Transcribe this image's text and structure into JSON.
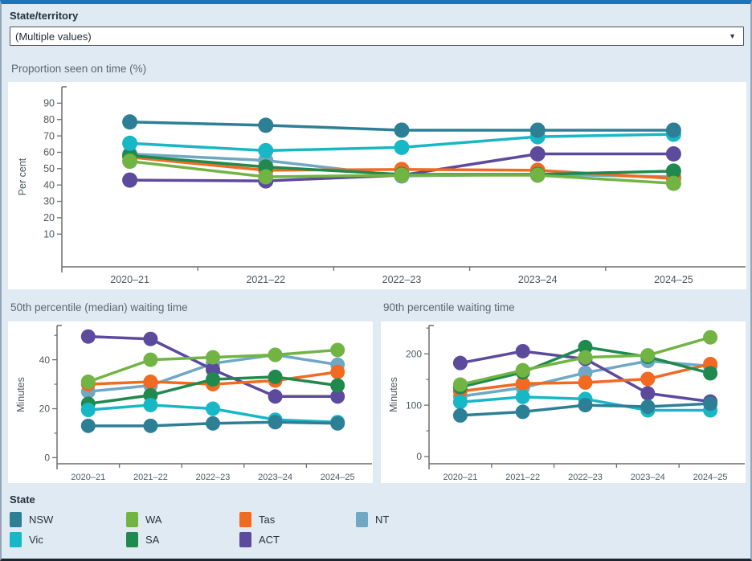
{
  "ui": {
    "filter_label": "State/territory",
    "filter_value": "(Multiple values)"
  },
  "colors": {
    "NSW": "#2d7f96",
    "Vic": "#18b7c6",
    "WA": "#72b444",
    "SA": "#20894e",
    "Tas": "#f16a22",
    "ACT": "#5c4a9d",
    "NT": "#70a8c4",
    "top_bar": "#1b75bc",
    "background": "#e0eaf2",
    "panel": "#ffffff"
  },
  "legend": {
    "title": "State",
    "items": [
      "NSW",
      "WA",
      "Tas",
      "NT",
      "Vic",
      "SA",
      "ACT"
    ]
  },
  "draw_order": [
    "NT",
    "ACT",
    "Tas",
    "SA",
    "WA",
    "Vic",
    "NSW"
  ],
  "chart_data": [
    {
      "type": "line",
      "title": "Proportion seen on time (%)",
      "ylabel": "Per cent",
      "categories": [
        "2020–21",
        "2021–22",
        "2022–23",
        "2023–24",
        "2024–25"
      ],
      "yticks": [
        10,
        20,
        30,
        40,
        50,
        60,
        70,
        80,
        90
      ],
      "yticks_minor": [],
      "ylim": [
        -10,
        100
      ],
      "legend_position": "bottom",
      "grid": false,
      "series": [
        {
          "name": "NSW",
          "values": [
            78.5,
            76.5,
            73.5,
            73.5,
            73.5
          ]
        },
        {
          "name": "Vic",
          "values": [
            65.5,
            61,
            63,
            69.5,
            71
          ]
        },
        {
          "name": "WA",
          "values": [
            54.5,
            45,
            46,
            46,
            41
          ]
        },
        {
          "name": "SA",
          "values": [
            58,
            51,
            46.5,
            46.5,
            48.5
          ]
        },
        {
          "name": "Tas",
          "values": [
            57,
            49,
            49.5,
            49,
            44
          ]
        },
        {
          "name": "ACT",
          "values": [
            43,
            42.5,
            46,
            59,
            59
          ]
        },
        {
          "name": "NT",
          "values": [
            59,
            55,
            45.5,
            46.5,
            45
          ]
        }
      ]
    },
    {
      "type": "line",
      "title": "50th percentile (median) waiting time",
      "ylabel": "Minutes",
      "categories": [
        "2020–21",
        "2021–22",
        "2022–23",
        "2023–24",
        "2024–25"
      ],
      "yticks": [
        0,
        20,
        40
      ],
      "yticks_minor": [
        10,
        30,
        50
      ],
      "ylim": [
        -2.5,
        54
      ],
      "legend_position": "bottom",
      "grid": false,
      "series": [
        {
          "name": "NSW",
          "values": [
            13,
            13,
            14,
            14.5,
            14
          ]
        },
        {
          "name": "Vic",
          "values": [
            19.5,
            21.5,
            20,
            15.5,
            14.5
          ]
        },
        {
          "name": "WA",
          "values": [
            31,
            40,
            41,
            42,
            44
          ]
        },
        {
          "name": "SA",
          "values": [
            22,
            25.5,
            32,
            33,
            29.5
          ]
        },
        {
          "name": "Tas",
          "values": [
            30,
            31,
            30,
            31.5,
            35
          ]
        },
        {
          "name": "ACT",
          "values": [
            49.5,
            48.5,
            36,
            25,
            25
          ]
        },
        {
          "name": "NT",
          "values": [
            27,
            29.5,
            38.5,
            42,
            38
          ]
        }
      ]
    },
    {
      "type": "line",
      "title": "90th percentile waiting time",
      "ylabel": "Minutes",
      "categories": [
        "2020–21",
        "2021–22",
        "2022–23",
        "2023–24",
        "2024–25"
      ],
      "yticks": [
        0,
        100,
        200
      ],
      "yticks_minor": [
        50,
        150,
        250
      ],
      "ylim": [
        -14,
        255
      ],
      "legend_position": "bottom",
      "grid": false,
      "series": [
        {
          "name": "NSW",
          "values": [
            80,
            87,
            100,
            97,
            103
          ]
        },
        {
          "name": "Vic",
          "values": [
            106,
            116,
            112,
            90,
            90
          ]
        },
        {
          "name": "WA",
          "values": [
            140,
            168,
            193,
            197,
            232
          ]
        },
        {
          "name": "SA",
          "values": [
            135,
            164,
            213,
            194,
            162
          ]
        },
        {
          "name": "Tas",
          "values": [
            127,
            142,
            144,
            151,
            180
          ]
        },
        {
          "name": "ACT",
          "values": [
            182,
            205,
            190,
            123,
            107
          ]
        },
        {
          "name": "NT",
          "values": [
            117,
            134,
            163,
            186,
            176
          ]
        }
      ]
    }
  ]
}
